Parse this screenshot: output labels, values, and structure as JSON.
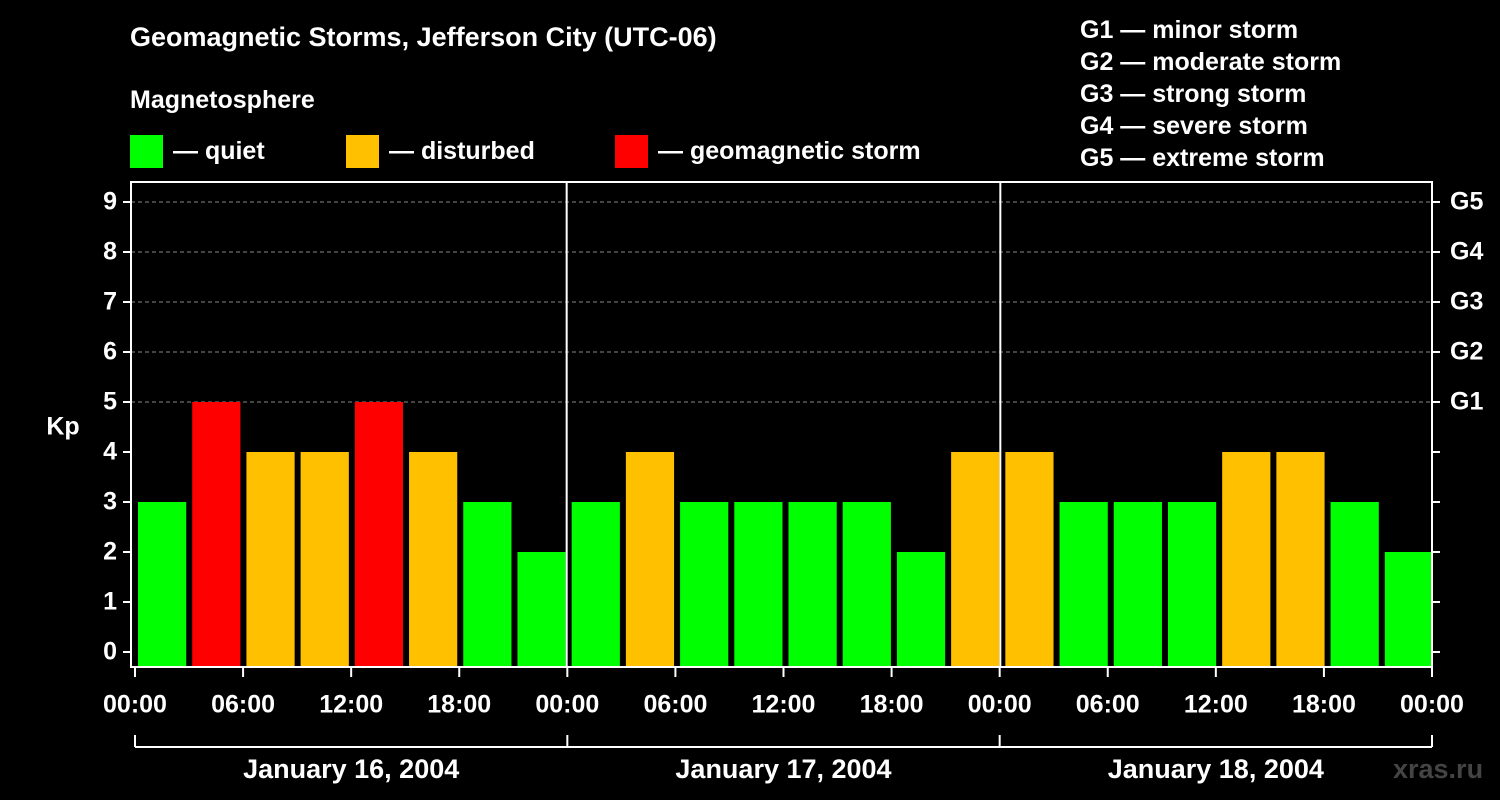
{
  "title": "Geomagnetic Storms, Jefferson City (UTC-06)",
  "subtitle": "Magnetosphere",
  "legend": [
    {
      "label": "— quiet",
      "color": "#00ff00"
    },
    {
      "label": "— disturbed",
      "color": "#ffc000"
    },
    {
      "label": "— geomagnetic storm",
      "color": "#ff0000"
    }
  ],
  "storm_levels": [
    "G1 — minor storm",
    "G2 — moderate storm",
    "G3 — strong storm",
    "G4 — severe storm",
    "G5 — extreme storm"
  ],
  "watermark": "xras.ru",
  "chart_data": {
    "type": "bar",
    "ylabel": "Kp",
    "ylim": [
      0,
      9
    ],
    "yticks": [
      "0",
      "1",
      "2",
      "3",
      "4",
      "5",
      "6",
      "7",
      "8",
      "9"
    ],
    "right_axis_labels": [
      {
        "value": 5,
        "label": "G1"
      },
      {
        "value": 6,
        "label": "G2"
      },
      {
        "value": 7,
        "label": "G3"
      },
      {
        "value": 8,
        "label": "G4"
      },
      {
        "value": 9,
        "label": "G5"
      }
    ],
    "xtick_labels": [
      "00:00",
      "06:00",
      "12:00",
      "18:00",
      "00:00",
      "06:00",
      "12:00",
      "18:00",
      "00:00",
      "06:00",
      "12:00",
      "18:00",
      "00:00"
    ],
    "days": [
      "January 16, 2004",
      "January 17, 2004",
      "January 18, 2004"
    ],
    "bars_per_day": 8,
    "values": [
      3,
      5,
      4,
      4,
      5,
      4,
      3,
      2,
      3,
      4,
      3,
      3,
      3,
      3,
      2,
      4,
      4,
      3,
      3,
      3,
      4,
      4,
      3,
      2
    ],
    "colors": {
      "quiet": "#00ff00",
      "disturbed": "#ffc000",
      "storm": "#ff0000"
    },
    "color_thresholds": {
      "disturbed_at": 4,
      "storm_at": 5
    },
    "grid": true,
    "legend_position": "top"
  }
}
